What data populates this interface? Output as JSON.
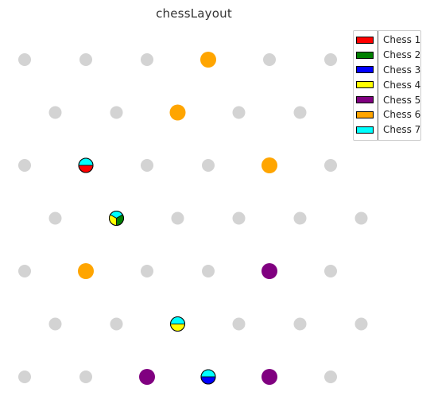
{
  "chart_data": {
    "type": "scatter",
    "title": "chessLayout",
    "xlabel": "",
    "ylabel": "",
    "grid": false,
    "legend_position": "top-right",
    "xlim": [
      0,
      11
    ],
    "ylim": [
      0,
      6.8
    ],
    "empty_color": "#d3d3d3",
    "series": [
      {
        "name": "Chess 1",
        "color": "#ff0000"
      },
      {
        "name": "Chess 2",
        "color": "#008000"
      },
      {
        "name": "Chess 3",
        "color": "#0000ff"
      },
      {
        "name": "Chess 4",
        "color": "#ffff00"
      },
      {
        "name": "Chess 5",
        "color": "#800080"
      },
      {
        "name": "Chess 6",
        "color": "#ffa500"
      },
      {
        "name": "Chess 7",
        "color": "#00ffff"
      }
    ],
    "positions": [
      {
        "x": 0,
        "y": 6,
        "chess": []
      },
      {
        "x": 2,
        "y": 6,
        "chess": []
      },
      {
        "x": 4,
        "y": 6,
        "chess": []
      },
      {
        "x": 6,
        "y": 6,
        "chess": [
          "Chess 6"
        ]
      },
      {
        "x": 8,
        "y": 6,
        "chess": []
      },
      {
        "x": 10,
        "y": 6,
        "chess": []
      },
      {
        "x": 1,
        "y": 5,
        "chess": []
      },
      {
        "x": 3,
        "y": 5,
        "chess": []
      },
      {
        "x": 5,
        "y": 5,
        "chess": [
          "Chess 6"
        ]
      },
      {
        "x": 7,
        "y": 5,
        "chess": []
      },
      {
        "x": 9,
        "y": 5,
        "chess": []
      },
      {
        "x": 0,
        "y": 4,
        "chess": []
      },
      {
        "x": 2,
        "y": 4,
        "chess": [
          "Chess 7",
          "Chess 1"
        ]
      },
      {
        "x": 4,
        "y": 4,
        "chess": []
      },
      {
        "x": 6,
        "y": 4,
        "chess": []
      },
      {
        "x": 8,
        "y": 4,
        "chess": [
          "Chess 6"
        ]
      },
      {
        "x": 10,
        "y": 4,
        "chess": []
      },
      {
        "x": 1,
        "y": 3,
        "chess": []
      },
      {
        "x": 3,
        "y": 3,
        "chess": [
          "Chess 7",
          "Chess 2",
          "Chess 4"
        ]
      },
      {
        "x": 5,
        "y": 3,
        "chess": []
      },
      {
        "x": 7,
        "y": 3,
        "chess": []
      },
      {
        "x": 9,
        "y": 3,
        "chess": []
      },
      {
        "x": 11,
        "y": 3,
        "chess": []
      },
      {
        "x": 0,
        "y": 2,
        "chess": []
      },
      {
        "x": 2,
        "y": 2,
        "chess": [
          "Chess 6"
        ]
      },
      {
        "x": 4,
        "y": 2,
        "chess": []
      },
      {
        "x": 6,
        "y": 2,
        "chess": []
      },
      {
        "x": 8,
        "y": 2,
        "chess": [
          "Chess 5"
        ]
      },
      {
        "x": 10,
        "y": 2,
        "chess": []
      },
      {
        "x": 1,
        "y": 1,
        "chess": []
      },
      {
        "x": 3,
        "y": 1,
        "chess": []
      },
      {
        "x": 5,
        "y": 1,
        "chess": [
          "Chess 7",
          "Chess 4"
        ]
      },
      {
        "x": 7,
        "y": 1,
        "chess": []
      },
      {
        "x": 9,
        "y": 1,
        "chess": []
      },
      {
        "x": 11,
        "y": 1,
        "chess": []
      },
      {
        "x": 0,
        "y": 0,
        "chess": []
      },
      {
        "x": 2,
        "y": 0,
        "chess": []
      },
      {
        "x": 4,
        "y": 0,
        "chess": [
          "Chess 5"
        ]
      },
      {
        "x": 6,
        "y": 0,
        "chess": [
          "Chess 7",
          "Chess 3"
        ]
      },
      {
        "x": 8,
        "y": 0,
        "chess": [
          "Chess 5"
        ]
      },
      {
        "x": 10,
        "y": 0,
        "chess": []
      }
    ]
  }
}
